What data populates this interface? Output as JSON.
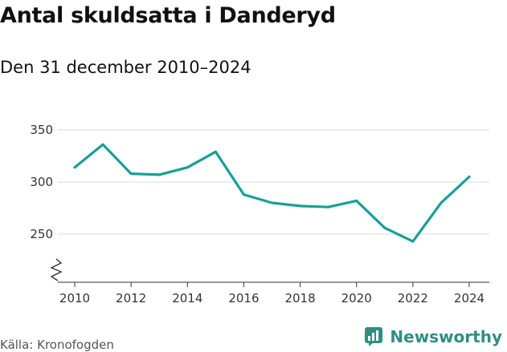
{
  "header": {
    "title": "Antal skuldsatta i Danderyd",
    "subtitle": "Den 31 december 2010–2024"
  },
  "footer": {
    "source": "Källa: Kronofogden",
    "brand": "Newsworthy"
  },
  "colors": {
    "line": "#17a095",
    "grid": "#d9d9d9",
    "axis": "#333333",
    "brand": "#2e8f84"
  },
  "chart_data": {
    "type": "line",
    "title": "Antal skuldsatta i Danderyd",
    "subtitle": "Den 31 december 2010–2024",
    "xlabel": "",
    "ylabel": "",
    "x": [
      2010,
      2011,
      2012,
      2013,
      2014,
      2015,
      2016,
      2017,
      2018,
      2019,
      2020,
      2021,
      2022,
      2023,
      2024
    ],
    "series": [
      {
        "values": [
          314,
          336,
          308,
          307,
          314,
          329,
          288,
          280,
          277,
          276,
          282,
          256,
          243,
          280,
          305
        ]
      }
    ],
    "x_ticks": [
      2010,
      2012,
      2014,
      2016,
      2018,
      2020,
      2022,
      2024
    ],
    "y_ticks": [
      250,
      300,
      350
    ],
    "ylim": [
      200,
      350
    ],
    "axis_break": true,
    "grid": true
  }
}
